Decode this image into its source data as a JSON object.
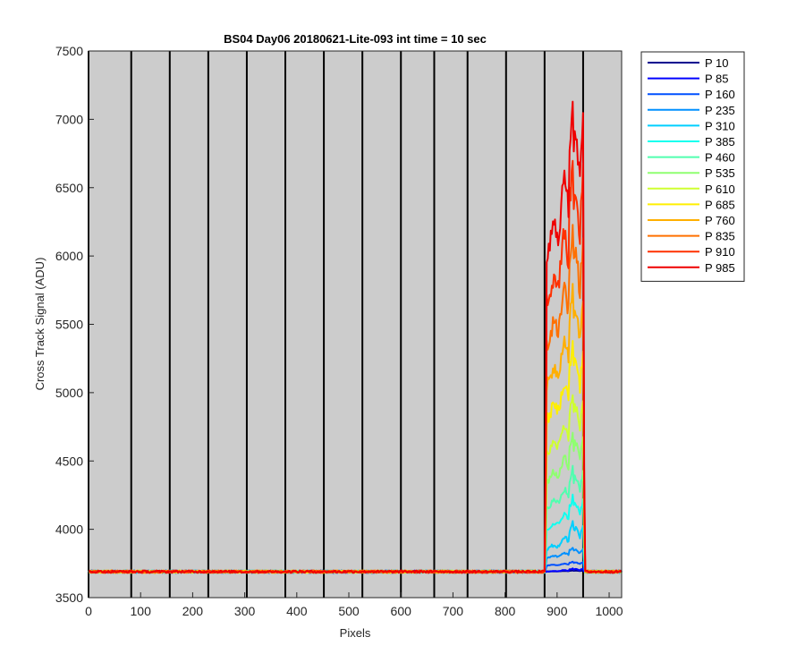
{
  "chart_data": {
    "type": "line",
    "title": "BS04 Day06 20180621-Lite-093 int time = 10 sec",
    "xlabel": "Pixels",
    "ylabel": "Cross Track Signal (ADU)",
    "xlim": [
      0,
      1024
    ],
    "ylim": [
      3500,
      7500
    ],
    "xticks": [
      0,
      100,
      200,
      300,
      400,
      500,
      600,
      700,
      800,
      900,
      1000
    ],
    "yticks": [
      3500,
      4000,
      4500,
      5000,
      5500,
      6000,
      6500,
      7000,
      7500
    ],
    "vertical_lines": [
      0,
      82,
      156,
      230,
      304,
      378,
      452,
      526,
      600,
      664,
      728,
      802,
      876,
      950
    ],
    "plot_background": "#cccccc",
    "legend_position": "outside-right",
    "baseline": 3690,
    "bright_region": [
      880,
      950
    ],
    "series": [
      {
        "name": "P 10",
        "color": "#00008f",
        "peak_min": 3692,
        "peak_max": 3700
      },
      {
        "name": "P 85",
        "color": "#0000ff",
        "peak_min": 3690,
        "peak_max": 3720
      },
      {
        "name": "P 160",
        "color": "#0050ff",
        "peak_min": 3735,
        "peak_max": 3770
      },
      {
        "name": "P 235",
        "color": "#0090ff",
        "peak_min": 3790,
        "peak_max": 3890
      },
      {
        "name": "P 310",
        "color": "#00cfff",
        "peak_min": 3850,
        "peak_max": 4100
      },
      {
        "name": "P 385",
        "color": "#10ffef",
        "peak_min": 4000,
        "peak_max": 4300
      },
      {
        "name": "P 460",
        "color": "#50ffaf",
        "peak_min": 4150,
        "peak_max": 4520
      },
      {
        "name": "P 535",
        "color": "#8fff70",
        "peak_min": 4350,
        "peak_max": 4800
      },
      {
        "name": "P 610",
        "color": "#cfff30",
        "peak_min": 4550,
        "peak_max": 5100
      },
      {
        "name": "P 685",
        "color": "#ffef00",
        "peak_min": 4800,
        "peak_max": 5500
      },
      {
        "name": "P 760",
        "color": "#ffaf00",
        "peak_min": 5050,
        "peak_max": 5950
      },
      {
        "name": "P 835",
        "color": "#ff7000",
        "peak_min": 5350,
        "peak_max": 6450
      },
      {
        "name": "P 910",
        "color": "#ff3000",
        "peak_min": 5650,
        "peak_max": 7000
      },
      {
        "name": "P 985",
        "color": "#ef0000",
        "peak_min": 6000,
        "peak_max": 7480
      }
    ]
  }
}
